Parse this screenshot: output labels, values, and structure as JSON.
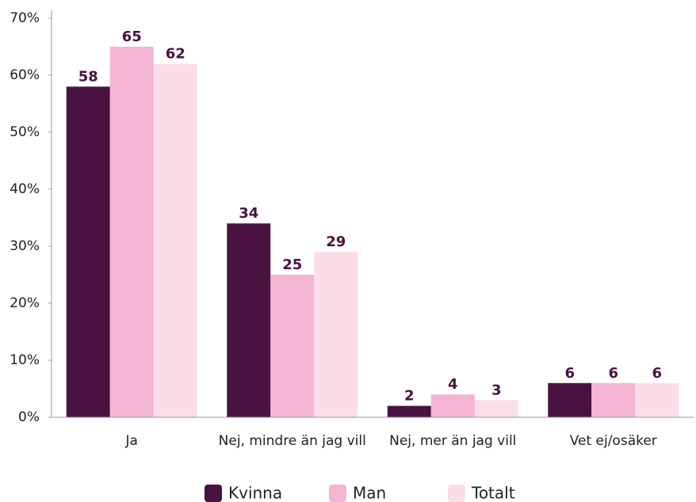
{
  "chart_data": {
    "type": "bar",
    "categories": [
      "Ja",
      "Nej, mindre än jag vill",
      "Nej, mer än jag vill",
      "Vet ej/osäker"
    ],
    "series": [
      {
        "name": "Kvinna",
        "color": "#4a1240",
        "values": [
          58,
          34,
          2,
          6
        ]
      },
      {
        "name": "Man",
        "color": "#f4b5d3",
        "values": [
          65,
          25,
          4,
          6
        ]
      },
      {
        "name": "Totalt",
        "color": "#fbdde9",
        "values": [
          62,
          29,
          3,
          6
        ]
      }
    ],
    "ylim": [
      0,
      70
    ],
    "yticks": [
      {
        "value": 0,
        "label": "0%"
      },
      {
        "value": 10,
        "label": "10%"
      },
      {
        "value": 20,
        "label": "20%"
      },
      {
        "value": 30,
        "label": "30%"
      },
      {
        "value": 40,
        "label": "40%"
      },
      {
        "value": 50,
        "label": "50%"
      },
      {
        "value": 60,
        "label": "60%"
      },
      {
        "value": 70,
        "label": "70%"
      }
    ],
    "grid": false,
    "legend": "bottom"
  }
}
